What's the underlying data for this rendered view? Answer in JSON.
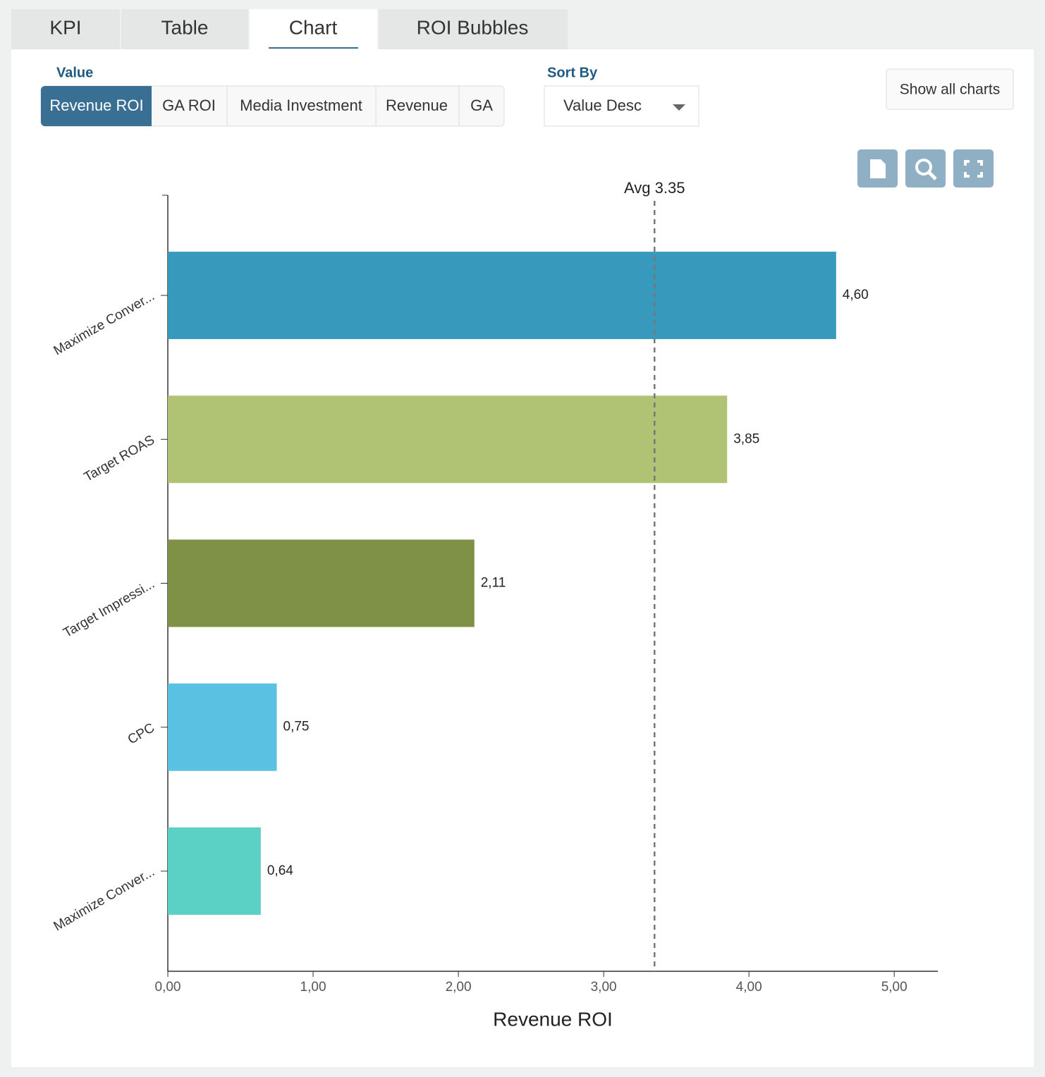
{
  "tabs": [
    "KPI",
    "Table",
    "Chart",
    "ROI Bubbles"
  ],
  "value_label": "Value",
  "value_options": [
    "Revenue ROI",
    "GA ROI",
    "Media Investment",
    "Revenue",
    "GA"
  ],
  "sort_label": "Sort By",
  "sort_value": "Value Desc",
  "show_all": "Show all charts",
  "chart_data": {
    "type": "bar",
    "orientation": "horizontal",
    "categories": [
      "Maximize Conver...",
      "Target ROAS",
      "Target Impressi...",
      "CPC",
      "Maximize Conver..."
    ],
    "values": [
      4.6,
      3.85,
      2.11,
      0.75,
      0.64
    ],
    "value_labels": [
      "4,60",
      "3,85",
      "2,11",
      "0,75",
      "0,64"
    ],
    "colors": [
      "#3799bb",
      "#b0c374",
      "#7f9146",
      "#5bc1e2",
      "#5bd1c5"
    ],
    "xlim": [
      0,
      5.3
    ],
    "xticks": [
      {
        "value": 0,
        "label": "0,00"
      },
      {
        "value": 1,
        "label": "1,00"
      },
      {
        "value": 2,
        "label": "2,00"
      },
      {
        "value": 3,
        "label": "3,00"
      },
      {
        "value": 4,
        "label": "4,00"
      },
      {
        "value": 5,
        "label": "5,00"
      }
    ],
    "x_label": "Revenue ROI",
    "average": {
      "value": 3.35,
      "label": "Avg 3.35"
    }
  }
}
